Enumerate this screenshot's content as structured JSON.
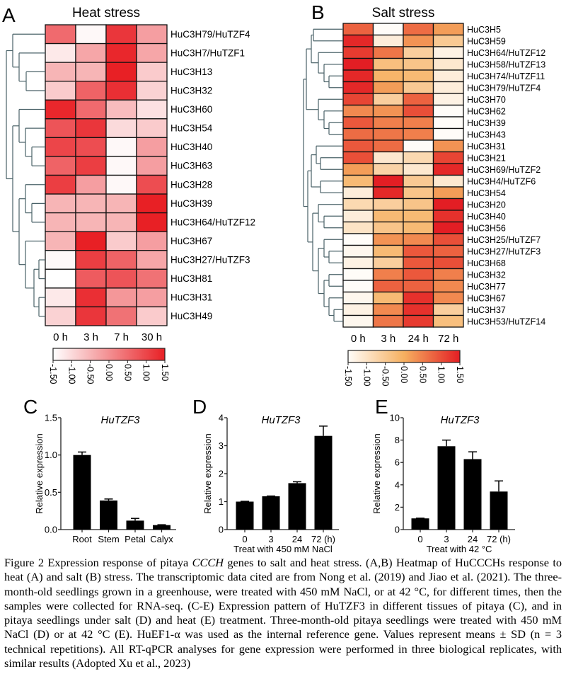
{
  "panels": {
    "A": {
      "letter": "A",
      "title": "Heat stress"
    },
    "B": {
      "letter": "B",
      "title": "Salt stress"
    },
    "C": {
      "letter": "C"
    },
    "D": {
      "letter": "D"
    },
    "E": {
      "letter": "E"
    }
  },
  "chart_data": [
    {
      "type": "heatmap",
      "title": "Heat stress",
      "columns": [
        "0 h",
        "3 h",
        "7 h",
        "30 h"
      ],
      "rows": [
        "HuC3H79/HuTZF4",
        "HuC3H7/HuTZF1",
        "HuC3H13",
        "HuC3H32",
        "HuC3H60",
        "HuC3H54",
        "HuC3H40",
        "HuC3H63",
        "HuC3H28",
        "HuC3H39",
        "HuC3H64/HuTZF12",
        "HuC3H67",
        "HuC3H27/HuTZF3",
        "HuC3H81",
        "HuC3H31",
        "HuC3H49"
      ],
      "values": [
        [
          0.5,
          -1.4,
          1.2,
          -0.2
        ],
        [
          -1.2,
          -0.3,
          1.4,
          -0.3
        ],
        [
          -0.5,
          -0.5,
          1.5,
          -0.8
        ],
        [
          -0.8,
          0.6,
          1.3,
          -0.9
        ],
        [
          1.4,
          0.5,
          -0.6,
          -1.1
        ],
        [
          0.8,
          1.2,
          -1.0,
          -0.8
        ],
        [
          1.0,
          0.9,
          -1.4,
          -0.2
        ],
        [
          0.6,
          1.1,
          -1.4,
          -0.2
        ],
        [
          1.1,
          -0.2,
          -1.4,
          0.9
        ],
        [
          -0.5,
          -0.5,
          -0.5,
          1.5
        ],
        [
          -0.5,
          -0.5,
          -0.5,
          1.5
        ],
        [
          -0.5,
          1.5,
          -0.8,
          -0.2
        ],
        [
          -1.4,
          1.1,
          0.6,
          -0.3
        ],
        [
          -1.5,
          0.7,
          0.8,
          0.4
        ],
        [
          -1.2,
          1.3,
          -0.1,
          -0.2
        ],
        [
          -0.9,
          1.2,
          0.4,
          -0.8
        ]
      ],
      "color_range": [
        -1.5,
        1.5
      ],
      "colorbar_ticks": [
        "-1.50",
        "-1.00",
        "-0.50",
        "0.00",
        "0.50",
        "1.00",
        "1.50"
      ],
      "colors": [
        "#ffffff",
        "#e82025"
      ],
      "dendrogram": "rows"
    },
    {
      "type": "heatmap",
      "title": "Salt stress",
      "columns": [
        "0 h",
        "3 h",
        "24 h",
        "72 h"
      ],
      "rows": [
        "HuC3H5",
        "HuC3H59",
        "HuC3H64/HuTZF12",
        "HuC3H58/HuTZF13",
        "HuC3H74/HuTZF11",
        "HuC3H79/HuTZF4",
        "HuC3H70",
        "HuC3H62",
        "HuC3H39",
        "HuC3H43",
        "HuC3H31",
        "HuC3H21",
        "HuC3H69/HuTZF2",
        "HuC3H4/HuTZF6",
        "HuC3H54",
        "HuC3H20",
        "HuC3H40",
        "HuC3H56",
        "HuC3H25/HuTZF7",
        "HuC3H27/HuTZF3",
        "HuC3H68",
        "HuC3H32",
        "HuC3H77",
        "HuC3H67",
        "HuC3H37",
        "HuC3H53/HuTZF14"
      ],
      "values": [
        [
          0.8,
          -1.5,
          0.7,
          0.2
        ],
        [
          1.4,
          -1.2,
          0.3,
          -0.5
        ],
        [
          1.2,
          0.6,
          -0.6,
          -1.3
        ],
        [
          1.5,
          -0.3,
          -0.4,
          -1.1
        ],
        [
          1.4,
          -0.1,
          -0.2,
          -1.2
        ],
        [
          1.4,
          0.2,
          -0.5,
          -1.2
        ],
        [
          1.1,
          -0.6,
          0.8,
          -1.3
        ],
        [
          0.4,
          0.3,
          1.0,
          -1.5
        ],
        [
          0.9,
          0.5,
          0.5,
          -1.5
        ],
        [
          0.7,
          0.6,
          0.5,
          -1.5
        ],
        [
          0.9,
          0.7,
          -1.5,
          0.3
        ],
        [
          1.0,
          -1.1,
          -0.8,
          1.1
        ],
        [
          0.2,
          -0.7,
          -1.1,
          1.4
        ],
        [
          -0.2,
          1.5,
          -0.5,
          -1.1
        ],
        [
          -1.2,
          1.4,
          -0.4,
          0.2
        ],
        [
          -0.8,
          -0.6,
          -0.4,
          1.5
        ],
        [
          -1.2,
          -0.2,
          -0.2,
          1.3
        ],
        [
          -1.0,
          -0.4,
          -0.2,
          1.5
        ],
        [
          -1.5,
          0.3,
          0.4,
          1.0
        ],
        [
          -1.4,
          -0.2,
          0.9,
          0.8
        ],
        [
          -1.3,
          -0.6,
          0.9,
          1.0
        ],
        [
          -1.5,
          0.5,
          0.9,
          0.5
        ],
        [
          -1.5,
          0.8,
          0.8,
          0.4
        ],
        [
          -1.4,
          -0.2,
          1.3,
          0.4
        ],
        [
          -1.3,
          0.4,
          1.3,
          -0.6
        ],
        [
          -1.4,
          0.6,
          1.2,
          -0.3
        ]
      ],
      "color_range": [
        -1.5,
        1.5
      ],
      "colorbar_ticks": [
        "-1.50",
        "-1.00",
        "-0.50",
        "0.00",
        "0.50",
        "1.00",
        "1.50"
      ],
      "colors": [
        "#fffcf8",
        "#f6b060",
        "#e31e24"
      ],
      "dendrogram": "rows"
    },
    {
      "type": "bar",
      "title": "HuTZF3",
      "categories": [
        "Root",
        "Stem",
        "Petal",
        "Calyx"
      ],
      "values": [
        1.0,
        0.39,
        0.12,
        0.06
      ],
      "errors": [
        0.04,
        0.02,
        0.03,
        0.005
      ],
      "ylabel": "Relative expression",
      "xlabel": "",
      "ylim": [
        0,
        1.5
      ],
      "yticks": [
        0,
        0.5,
        1.0,
        1.5
      ],
      "ytick_labels": [
        "0.0",
        "0.5",
        "1.0",
        "1.5"
      ]
    },
    {
      "type": "bar",
      "title": "HuTZF3",
      "categories": [
        "0",
        "3",
        "24",
        "72 (h)"
      ],
      "values": [
        1.0,
        1.19,
        1.66,
        3.35
      ],
      "errors": [
        0.01,
        0.01,
        0.05,
        0.35
      ],
      "ylabel": "Relative expression",
      "xlabel": "Treat with  450 mM NaCl",
      "ylim": [
        0,
        4
      ],
      "yticks": [
        0,
        1,
        2,
        3,
        4
      ],
      "ytick_labels": [
        "0",
        "1",
        "2",
        "3",
        "4"
      ]
    },
    {
      "type": "bar",
      "title": "HuTZF3",
      "categories": [
        "0",
        "3",
        "24",
        "72 (h)"
      ],
      "values": [
        1.0,
        7.45,
        6.3,
        3.4
      ],
      "errors": [
        0.02,
        0.55,
        0.65,
        0.95
      ],
      "ylabel": "Relative expression",
      "xlabel": "Treat with 42 °C",
      "ylim": [
        0,
        10
      ],
      "yticks": [
        0,
        2,
        4,
        6,
        8,
        10
      ],
      "ytick_labels": [
        "0",
        "2",
        "4",
        "6",
        "8",
        "10"
      ]
    }
  ],
  "caption": {
    "before": "Figure 2 Expression response of pitaya ",
    "italic": "CCCH",
    "after": " genes to salt and heat stress. (A,B) Heatmap of HuCCCHs response to heat (A) and salt (B) stress. The transcriptomic data cited are from Nong et al. (2019) and Jiao et al. (2021). The three-month-old seedlings grown in a greenhouse, were treated with 450 mM NaCl, or at 42  °C, for different times, then the samples were collected for RNA-seq. (C-E) Expression pattern of HuTZF3 in different tissues of pitaya (C), and in pitaya seedlings under salt (D) and heat (E) treatment. Three-month-old pitaya seedlings were treated with 450 mM NaCl (D) or at 42 °C (E). HuEF1-α was used as the internal reference gene. Values represent means ± SD (n = 3 technical repetitions). All RT-qPCR analyses for gene expression were performed in three biological replicates, with similar results (Adopted Xu et al., 2023)"
  }
}
